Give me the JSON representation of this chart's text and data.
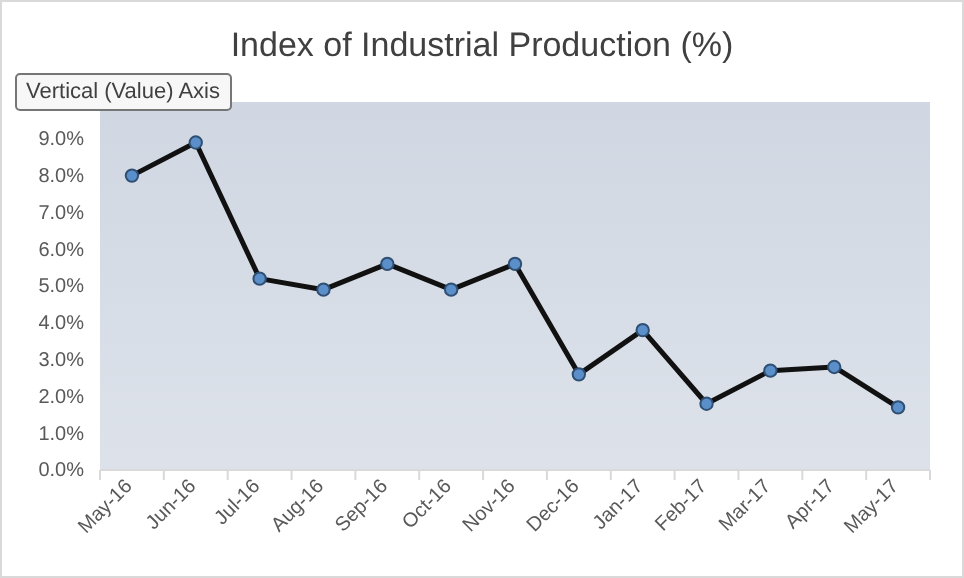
{
  "chart_data": {
    "type": "line",
    "title": "Index of Industrial Production (%)",
    "categories": [
      "May-16",
      "Jun-16",
      "Jul-16",
      "Aug-16",
      "Sep-16",
      "Oct-16",
      "Nov-16",
      "Dec-16",
      "Jan-17",
      "Feb-17",
      "Mar-17",
      "Apr-17",
      "May-17"
    ],
    "series": [
      {
        "color": "#111111",
        "values": [
          8.0,
          8.9,
          5.2,
          4.9,
          5.6,
          4.9,
          5.6,
          2.6,
          3.8,
          1.8,
          2.7,
          2.8,
          1.7
        ]
      }
    ],
    "ylim": [
      0,
      10
    ],
    "yticks": [
      {
        "value": 0,
        "label": "0.0%"
      },
      {
        "value": 1,
        "label": "1.0%"
      },
      {
        "value": 2,
        "label": "2.0%"
      },
      {
        "value": 3,
        "label": "3.0%"
      },
      {
        "value": 4,
        "label": "4.0%"
      },
      {
        "value": 5,
        "label": "5.0%"
      },
      {
        "value": 6,
        "label": "6.0%"
      },
      {
        "value": 7,
        "label": "7.0%"
      },
      {
        "value": 8,
        "label": "8.0%"
      },
      {
        "value": 9,
        "label": "9.0%"
      },
      {
        "value": 10,
        "label": null
      }
    ],
    "marker": "circle",
    "line_style": "solid",
    "annotations": [
      "Vertical (Value) Axis"
    ]
  }
}
